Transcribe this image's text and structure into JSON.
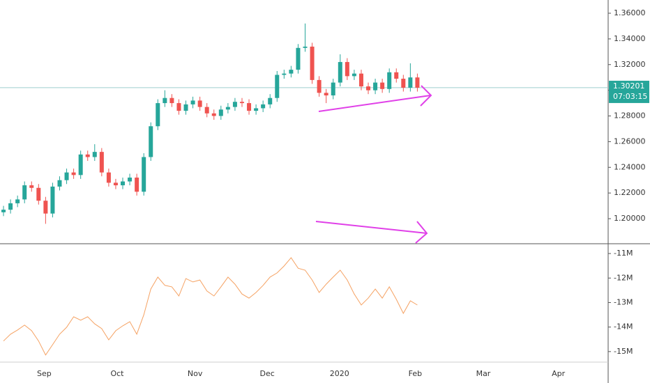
{
  "chart_data": [
    {
      "type": "candlestick",
      "xlim": [
        -0.5,
        86.2
      ],
      "xticks": [
        {
          "value": 5.8,
          "label": "Sep"
        },
        {
          "value": 16.2,
          "label": "Oct"
        },
        {
          "value": 27.3,
          "label": "Nov"
        },
        {
          "value": 37.6,
          "label": "Dec"
        },
        {
          "value": 47.9,
          "label": "2020"
        },
        {
          "value": 58.7,
          "label": "Feb"
        },
        {
          "value": 68.4,
          "label": "Mar"
        },
        {
          "value": 79.1,
          "label": "Apr"
        }
      ],
      "ylim": [
        1.1805,
        1.3703
      ],
      "yticks": [
        {
          "value": 1.2,
          "label": "1.20000"
        },
        {
          "value": 1.22,
          "label": "1.22000"
        },
        {
          "value": 1.24,
          "label": "1.24000"
        },
        {
          "value": 1.26,
          "label": "1.26000"
        },
        {
          "value": 1.28,
          "label": "1.28000"
        },
        {
          "value": 1.3,
          "label": "1.30000"
        },
        {
          "value": 1.32,
          "label": "1.32000"
        },
        {
          "value": 1.34,
          "label": "1.34000"
        },
        {
          "value": 1.36,
          "label": "1.36000"
        }
      ],
      "up_color": "#26a69a",
      "down_color": "#ef5350",
      "open": [
        1.205,
        1.207,
        1.212,
        1.215,
        1.226,
        1.224,
        1.214,
        1.204,
        1.225,
        1.23,
        1.236,
        1.234,
        1.25,
        1.248,
        1.252,
        1.236,
        1.228,
        1.226,
        1.229,
        1.232,
        1.221,
        1.248,
        1.272,
        1.29,
        1.294,
        1.29,
        1.284,
        1.289,
        1.292,
        1.287,
        1.282,
        1.28,
        1.285,
        1.287,
        1.291,
        1.29,
        1.284,
        1.286,
        1.289,
        1.294,
        1.312,
        1.313,
        1.316,
        1.333,
        1.334,
        1.308,
        1.298,
        1.296,
        1.306,
        1.322,
        1.311,
        1.313,
        1.303,
        1.3,
        1.306,
        1.301,
        1.314,
        1.309,
        1.302,
        1.31
      ],
      "high": [
        1.21,
        1.215,
        1.218,
        1.229,
        1.229,
        1.227,
        1.217,
        1.228,
        1.233,
        1.239,
        1.239,
        1.253,
        1.253,
        1.258,
        1.255,
        1.239,
        1.231,
        1.232,
        1.235,
        1.235,
        1.251,
        1.275,
        1.293,
        1.3,
        1.297,
        1.293,
        1.292,
        1.295,
        1.295,
        1.29,
        1.285,
        1.288,
        1.29,
        1.294,
        1.294,
        1.293,
        1.289,
        1.292,
        1.297,
        1.315,
        1.316,
        1.319,
        1.336,
        1.352,
        1.337,
        1.311,
        1.301,
        1.309,
        1.328,
        1.325,
        1.316,
        1.316,
        1.306,
        1.309,
        1.309,
        1.317,
        1.317,
        1.312,
        1.321,
        1.313
      ],
      "low": [
        1.202,
        1.204,
        1.209,
        1.212,
        1.221,
        1.211,
        1.196,
        1.201,
        1.222,
        1.227,
        1.231,
        1.231,
        1.245,
        1.245,
        1.233,
        1.225,
        1.223,
        1.223,
        1.226,
        1.218,
        1.218,
        1.245,
        1.269,
        1.287,
        1.287,
        1.281,
        1.281,
        1.286,
        1.284,
        1.279,
        1.277,
        1.277,
        1.282,
        1.284,
        1.287,
        1.281,
        1.281,
        1.283,
        1.286,
        1.291,
        1.309,
        1.31,
        1.313,
        1.33,
        1.305,
        1.295,
        1.29,
        1.293,
        1.303,
        1.308,
        1.308,
        1.3,
        1.297,
        1.297,
        1.298,
        1.298,
        1.306,
        1.299,
        1.299,
        1.299
      ],
      "close": [
        1.207,
        1.212,
        1.215,
        1.226,
        1.224,
        1.214,
        1.204,
        1.225,
        1.23,
        1.236,
        1.234,
        1.25,
        1.248,
        1.252,
        1.236,
        1.228,
        1.226,
        1.229,
        1.232,
        1.221,
        1.248,
        1.272,
        1.29,
        1.294,
        1.29,
        1.284,
        1.289,
        1.292,
        1.287,
        1.282,
        1.28,
        1.285,
        1.287,
        1.291,
        1.29,
        1.284,
        1.286,
        1.289,
        1.294,
        1.312,
        1.313,
        1.316,
        1.333,
        1.334,
        1.308,
        1.298,
        1.296,
        1.306,
        1.322,
        1.311,
        1.313,
        1.303,
        1.3,
        1.306,
        1.301,
        1.314,
        1.309,
        1.302,
        1.31,
        1.302
      ],
      "last_price": {
        "value": 1.30201,
        "label": "1.30201"
      },
      "countdown": "07:03:15",
      "price_line_color": "#9ecfcf"
    },
    {
      "type": "line",
      "xlim": [
        -0.5,
        86.2
      ],
      "ylim": [
        -15.43,
        -10.6
      ],
      "yticks": [
        {
          "value": -15,
          "label": "-15M"
        },
        {
          "value": -14,
          "label": "-14M"
        },
        {
          "value": -13,
          "label": "-13M"
        },
        {
          "value": -12,
          "label": "-12M"
        },
        {
          "value": -11,
          "label": "-11M"
        }
      ],
      "color": "#f5a263",
      "values": [
        -14.57,
        -14.29,
        -14.12,
        -13.92,
        -14.15,
        -14.57,
        -15.14,
        -14.72,
        -14.29,
        -14.01,
        -13.58,
        -13.72,
        -13.58,
        -13.87,
        -14.06,
        -14.52,
        -14.15,
        -13.95,
        -13.78,
        -14.29,
        -13.5,
        -12.45,
        -11.96,
        -12.3,
        -12.36,
        -12.73,
        -12.02,
        -12.16,
        -12.08,
        -12.53,
        -12.73,
        -12.36,
        -11.96,
        -12.25,
        -12.65,
        -12.82,
        -12.59,
        -12.3,
        -11.96,
        -11.79,
        -11.51,
        -11.17,
        -11.6,
        -11.68,
        -12.08,
        -12.59,
        -12.25,
        -11.96,
        -11.68,
        -12.08,
        -12.65,
        -13.1,
        -12.82,
        -12.45,
        -12.82,
        -12.36,
        -12.87,
        -13.44,
        -12.93,
        -13.1
      ]
    }
  ]
}
